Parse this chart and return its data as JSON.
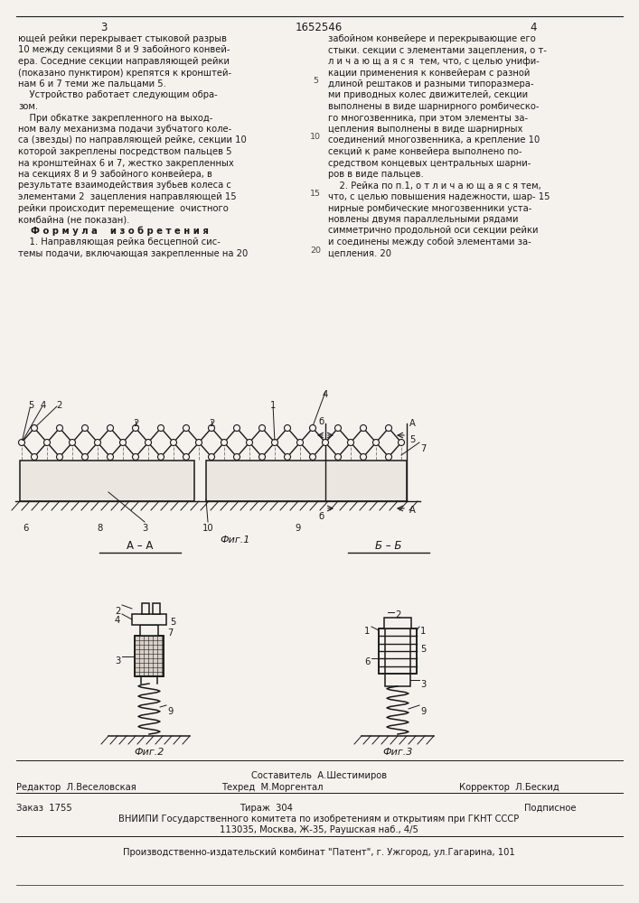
{
  "page_number_left": "3",
  "page_number_center": "1652546",
  "page_number_right": "4",
  "left_col_lines": [
    "ющей рейки перекрывает стыковой разрыв",
    "10 между секциями 8 и 9 забойного конвей-",
    "ера. Соседние секции направляющей рейки",
    "(показано пунктиром) крепятся к кронштей-",
    "нам 6 и 7 теми же пальцами 5.",
    "    Устройство работает следующим обра-",
    "зом.",
    "    При обкатке закрепленного на выход-",
    "ном валу механизма подачи зубчатого коле-",
    "са (звезды) по направляющей рейке, секции 10",
    "которой закреплены посредством пальцев 5",
    "на кронштейнах 6 и 7, жестко закрепленных",
    "на секциях 8 и 9 забойного конвейера, в",
    "результате взаимодействия зубьев колеса с",
    "элементами 2  зацепления направляющей 15",
    "рейки происходит перемещение  очистного",
    "комбайна (не показан).",
    "    Ф о р м у л а    и з о б р е т е н и я",
    "    1. Направляющая рейка бесцепной сис-",
    "темы подачи, включающая закрепленные на 20"
  ],
  "right_col_lines": [
    "забойном конвейере и перекрывающие его",
    "стыки. секции с элементами зацепления, о т-",
    "л и ч а ю щ а я с я  тем, что, с целью унифи-",
    "кации применения к конвейерам с разной",
    "длиной рештаков и разными типоразмера-",
    "ми приводных колес движителей, секции",
    "выполнены в виде шарнирного ромбическо-",
    "го многозвенника, при этом элементы за-",
    "цепления выполнены в виде шарнирных",
    "соединений многозвенника, а крепление 10",
    "секций к раме конвейера выполнено по-",
    "средством концевых центральных шарни-",
    "ров в виде пальцев.",
    "    2. Рейка по п.1, о т л и ч а ю щ а я с я тем,",
    "что, с целью повышения надежности, шар- 15",
    "нирные ромбические многозвенники уста-",
    "новлены двумя параллельными рядами",
    "симметрично продольной оси секции рейки",
    "и соединены между собой элементами за-",
    "цепления. 20"
  ],
  "formula_line_idx": 17,
  "fig1_label": "Фиг.1",
  "fig2_label": "Фиг.2",
  "fig3_label": "Фиг.3",
  "section_aa": "А – А",
  "section_bb": "Б – Б",
  "editor_line": "Редактор  Л.Веселовская",
  "composer_line": "Составитель  А.Шестимиров",
  "techred_line": "Техред  М.Моргентал",
  "corrector_line": "Корректор  Л.Бескид",
  "order_line": "Заказ  1755",
  "tirazh_line": "Тираж  304",
  "podpisnoe_line": "Подписное",
  "vniiipi_line": "ВНИИПИ Государственного комитета по изобретениям и открытиям при ГКНТ СССР",
  "address_line": "113035, Москва, Ж-35, Раушская наб., 4/5",
  "publisher_line": "Производственно-издательский комбинат \"Патент\", г. Ужгород, ул.Гагарина, 101",
  "bg_color": "#f5f2ed",
  "text_color": "#1a1a1a",
  "line_color": "#1a1a1a"
}
